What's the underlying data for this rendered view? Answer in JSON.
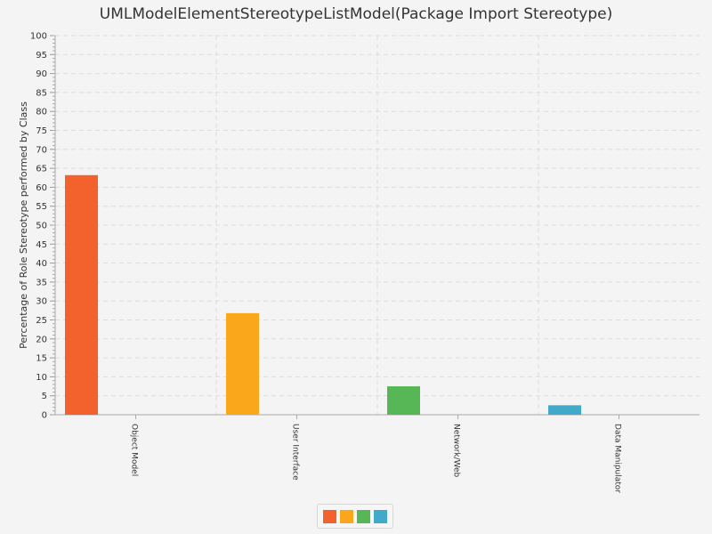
{
  "chart_data": {
    "type": "bar",
    "title": "UMLModelElementStereotypeListModel(Package Import Stereotype)",
    "xlabel": "",
    "ylabel": "Percentage of Role Stereotype performed by Class",
    "categories": [
      "Object Model",
      "User Interface",
      "Network/Web",
      "Data Manipulator"
    ],
    "values": [
      63.2,
      26.8,
      7.5,
      2.5
    ],
    "colors": [
      "#f3622d",
      "#fba71b",
      "#57b757",
      "#41a9c9"
    ],
    "ylim": [
      0,
      100
    ],
    "ytick_step": 5,
    "yticks": [
      "0",
      "5",
      "10",
      "15",
      "20",
      "25",
      "30",
      "35",
      "40",
      "45",
      "50",
      "55",
      "60",
      "65",
      "70",
      "75",
      "80",
      "85",
      "90",
      "95",
      "100"
    ],
    "grid": true,
    "legend_position": "bottom"
  }
}
